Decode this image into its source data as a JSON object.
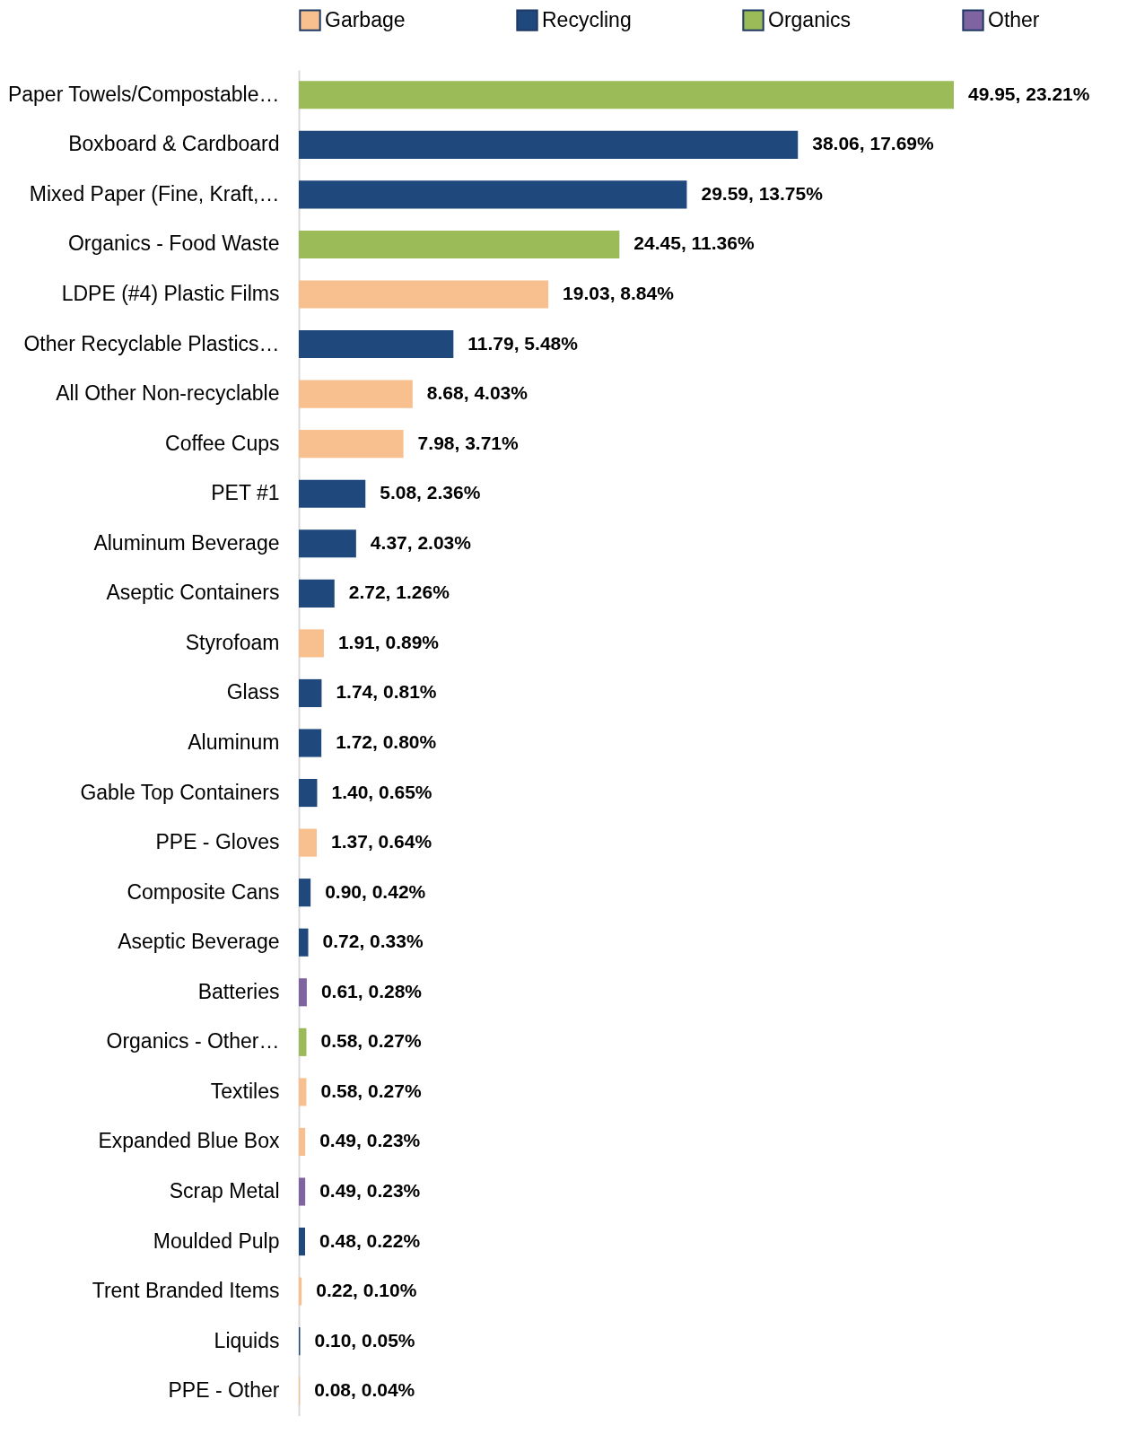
{
  "chart_data": {
    "type": "bar",
    "orientation": "horizontal",
    "legend": "top",
    "categories": [
      "Paper Towels/Compostable…",
      "Boxboard & Cardboard",
      "Mixed Paper (Fine, Kraft,…",
      "Organics - Food Waste",
      "LDPE (#4) Plastic Films",
      "Other Recyclable Plastics…",
      "All Other Non-recyclable",
      "Coffee Cups",
      "PET #1",
      "Aluminum Beverage",
      "Aseptic Containers",
      "Styrofoam",
      "Glass",
      "Aluminum",
      "Gable Top Containers",
      "PPE - Gloves",
      "Composite Cans",
      "Aseptic Beverage",
      "Batteries",
      "Organics - Other…",
      "Textiles",
      "Expanded Blue Box",
      "Scrap Metal",
      "Moulded Pulp",
      "Trent Branded Items",
      "Liquids",
      "PPE - Other"
    ],
    "series": [
      {
        "name": "Garbage",
        "color": "#f9c08f",
        "values": [
          null,
          null,
          null,
          null,
          19.03,
          null,
          8.68,
          7.98,
          null,
          null,
          null,
          1.91,
          null,
          null,
          null,
          1.37,
          null,
          null,
          null,
          null,
          0.58,
          0.49,
          null,
          null,
          0.22,
          null,
          0.08
        ],
        "value_labels": [
          null,
          null,
          null,
          null,
          "19.03, 8.84%",
          null,
          "8.68, 4.03%",
          "7.98, 3.71%",
          null,
          null,
          null,
          "1.91, 0.89%",
          null,
          null,
          null,
          "1.37, 0.64%",
          null,
          null,
          null,
          null,
          "0.58, 0.27%",
          "0.49, 0.23%",
          null,
          null,
          "0.22, 0.10%",
          null,
          "0.08, 0.04%"
        ]
      },
      {
        "name": "Recycling",
        "color": "#1f497d",
        "values": [
          null,
          38.06,
          29.59,
          null,
          null,
          11.79,
          null,
          null,
          5.08,
          4.37,
          2.72,
          null,
          1.74,
          1.72,
          1.4,
          null,
          0.9,
          0.72,
          null,
          null,
          null,
          null,
          null,
          0.48,
          null,
          0.1,
          null
        ],
        "value_labels": [
          null,
          "38.06, 17.69%",
          "29.59, 13.75%",
          null,
          null,
          "11.79, 5.48%",
          null,
          null,
          "5.08, 2.36%",
          "4.37, 2.03%",
          "2.72, 1.26%",
          null,
          "1.74, 0.81%",
          "1.72, 0.80%",
          "1.40, 0.65%",
          null,
          "0.90, 0.42%",
          "0.72, 0.33%",
          null,
          null,
          null,
          null,
          null,
          "0.48, 0.22%",
          null,
          "0.10, 0.05%",
          null
        ]
      },
      {
        "name": "Organics",
        "color": "#9bbb59",
        "values": [
          49.95,
          null,
          null,
          24.45,
          null,
          null,
          null,
          null,
          null,
          null,
          null,
          null,
          null,
          null,
          null,
          null,
          null,
          null,
          null,
          0.58,
          null,
          null,
          null,
          null,
          null,
          null,
          null
        ],
        "value_labels": [
          "49.95, 23.21%",
          null,
          null,
          "24.45, 11.36%",
          null,
          null,
          null,
          null,
          null,
          null,
          null,
          null,
          null,
          null,
          null,
          null,
          null,
          null,
          null,
          "0.58, 0.27%",
          null,
          null,
          null,
          null,
          null,
          null,
          null
        ]
      },
      {
        "name": "Other",
        "color": "#8064a2",
        "values": [
          null,
          null,
          null,
          null,
          null,
          null,
          null,
          null,
          null,
          null,
          null,
          null,
          null,
          null,
          null,
          null,
          null,
          null,
          0.61,
          null,
          null,
          null,
          0.49,
          null,
          null,
          null,
          null
        ],
        "value_labels": [
          null,
          null,
          null,
          null,
          null,
          null,
          null,
          null,
          null,
          null,
          null,
          null,
          null,
          null,
          null,
          null,
          null,
          null,
          "0.61, 0.28%",
          null,
          null,
          null,
          "0.49, 0.23%",
          null,
          null,
          null,
          null
        ]
      }
    ]
  }
}
